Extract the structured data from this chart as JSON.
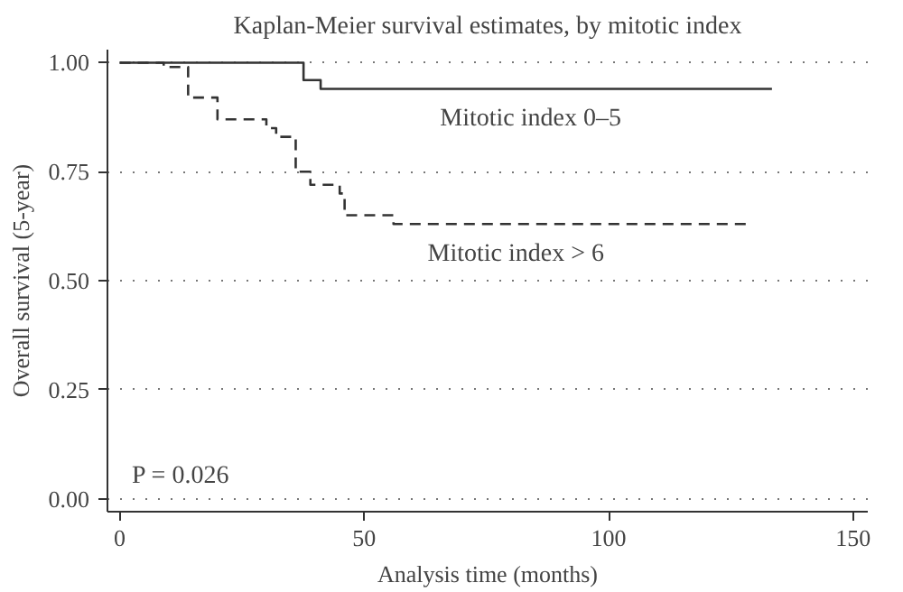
{
  "chart_data": {
    "type": "step",
    "title": "Kaplan-Meier survival estimates, by mitotic index",
    "xlabel": "Analysis time (months)",
    "ylabel": "Overall survival (5-year)",
    "annotations": [
      "P = 0.026"
    ],
    "series": [
      {
        "name": "Mitotic index 0–5",
        "color": "#333333",
        "line_style": "solid",
        "x": [
          0,
          37.6,
          41.1,
          133.4
        ],
        "values": [
          1.0,
          0.96,
          0.94,
          0.94
        ]
      },
      {
        "name": "Mitotic index > 6",
        "color": "#333333",
        "line_style": "dashed",
        "x": [
          0,
          9,
          14,
          20,
          30,
          32,
          36,
          39,
          45,
          46,
          56,
          128.6
        ],
        "values": [
          1.0,
          0.99,
          0.92,
          0.87,
          0.85,
          0.83,
          0.75,
          0.72,
          0.7,
          0.65,
          0.63,
          0.63
        ]
      }
    ],
    "xlim": [
      -2.5,
      153
    ],
    "ylim": [
      -0.03,
      1.03
    ],
    "xticks": [
      0,
      50,
      100,
      150
    ],
    "yticks": [
      {
        "value": 0,
        "label": "0.00"
      },
      {
        "value": 0.25,
        "label": "0.25"
      },
      {
        "value": 0.5,
        "label": "0.50"
      },
      {
        "value": 0.75,
        "label": "0.75"
      },
      {
        "value": 1,
        "label": "1.00"
      }
    ],
    "grid": "y"
  }
}
